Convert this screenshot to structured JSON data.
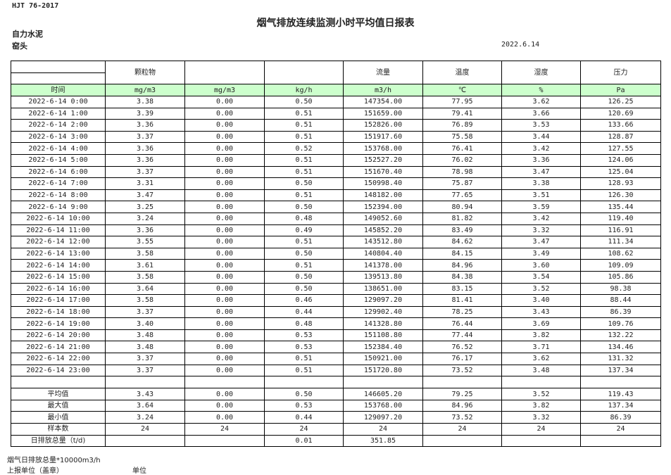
{
  "standard": "HJT  76-2017",
  "title": "烟气排放连续监测小时平均值日报表",
  "company": "自力水泥",
  "unit_name": "窑头",
  "date": "2022.6.14",
  "header": [
    "",
    "颗粒物",
    "",
    "",
    "流量",
    "温度",
    "湿度",
    "压力"
  ],
  "units": [
    "时间",
    "mg/m3",
    "mg/m3",
    "kg/h",
    "m3/h",
    "℃",
    "%",
    "Pa"
  ],
  "rows": [
    [
      "2022-6-14 0:00",
      "3.38",
      "0.00",
      "0.50",
      "147354.00",
      "77.95",
      "3.62",
      "126.25"
    ],
    [
      "2022-6-14 1:00",
      "3.39",
      "0.00",
      "0.51",
      "151659.00",
      "79.41",
      "3.66",
      "120.69"
    ],
    [
      "2022-6-14 2:00",
      "3.36",
      "0.00",
      "0.51",
      "152826.00",
      "76.89",
      "3.53",
      "133.66"
    ],
    [
      "2022-6-14 3:00",
      "3.37",
      "0.00",
      "0.51",
      "151917.60",
      "75.58",
      "3.44",
      "128.87"
    ],
    [
      "2022-6-14 4:00",
      "3.36",
      "0.00",
      "0.52",
      "153768.00",
      "76.41",
      "3.42",
      "127.55"
    ],
    [
      "2022-6-14 5:00",
      "3.36",
      "0.00",
      "0.51",
      "152527.20",
      "76.02",
      "3.36",
      "124.06"
    ],
    [
      "2022-6-14 6:00",
      "3.37",
      "0.00",
      "0.51",
      "151670.40",
      "78.98",
      "3.47",
      "125.04"
    ],
    [
      "2022-6-14 7:00",
      "3.31",
      "0.00",
      "0.50",
      "150998.40",
      "75.87",
      "3.38",
      "128.93"
    ],
    [
      "2022-6-14 8:00",
      "3.47",
      "0.00",
      "0.51",
      "148182.00",
      "77.65",
      "3.51",
      "126.30"
    ],
    [
      "2022-6-14 9:00",
      "3.25",
      "0.00",
      "0.50",
      "152394.00",
      "80.94",
      "3.59",
      "135.44"
    ],
    [
      "2022-6-14 10:00",
      "3.24",
      "0.00",
      "0.48",
      "149052.60",
      "81.82",
      "3.42",
      "119.40"
    ],
    [
      "2022-6-14 11:00",
      "3.36",
      "0.00",
      "0.49",
      "145852.20",
      "83.49",
      "3.32",
      "116.91"
    ],
    [
      "2022-6-14 12:00",
      "3.55",
      "0.00",
      "0.51",
      "143512.80",
      "84.62",
      "3.47",
      "111.34"
    ],
    [
      "2022-6-14 13:00",
      "3.58",
      "0.00",
      "0.50",
      "140804.40",
      "84.15",
      "3.49",
      "108.62"
    ],
    [
      "2022-6-14 14:00",
      "3.61",
      "0.00",
      "0.51",
      "141378.00",
      "84.96",
      "3.60",
      "109.09"
    ],
    [
      "2022-6-14 15:00",
      "3.58",
      "0.00",
      "0.50",
      "139513.80",
      "84.38",
      "3.54",
      "105.86"
    ],
    [
      "2022-6-14 16:00",
      "3.64",
      "0.00",
      "0.50",
      "138651.00",
      "83.15",
      "3.52",
      "98.38"
    ],
    [
      "2022-6-14 17:00",
      "3.58",
      "0.00",
      "0.46",
      "129097.20",
      "81.41",
      "3.40",
      "88.44"
    ],
    [
      "2022-6-14 18:00",
      "3.37",
      "0.00",
      "0.44",
      "129902.40",
      "78.25",
      "3.43",
      "86.39"
    ],
    [
      "2022-6-14 19:00",
      "3.40",
      "0.00",
      "0.48",
      "141328.80",
      "76.44",
      "3.69",
      "109.76"
    ],
    [
      "2022-6-14 20:00",
      "3.48",
      "0.00",
      "0.53",
      "151108.80",
      "77.44",
      "3.82",
      "132.22"
    ],
    [
      "2022-6-14 21:00",
      "3.48",
      "0.00",
      "0.53",
      "152384.40",
      "76.52",
      "3.71",
      "134.46"
    ],
    [
      "2022-6-14 22:00",
      "3.37",
      "0.00",
      "0.51",
      "150921.00",
      "76.17",
      "3.62",
      "131.32"
    ],
    [
      "2022-6-14 23:00",
      "3.37",
      "0.00",
      "0.51",
      "151720.80",
      "73.52",
      "3.48",
      "137.34"
    ]
  ],
  "summary": [
    [
      "平均值",
      "3.43",
      "0.00",
      "0.50",
      "146605.20",
      "79.25",
      "3.52",
      "119.43"
    ],
    [
      "最大值",
      "3.64",
      "0.00",
      "0.53",
      "153768.00",
      "84.96",
      "3.82",
      "137.34"
    ],
    [
      "最小值",
      "3.24",
      "0.00",
      "0.44",
      "129097.20",
      "73.52",
      "3.32",
      "86.39"
    ],
    [
      "样本数",
      "24",
      "24",
      "24",
      "24",
      "24",
      "24",
      "24"
    ],
    [
      "日排放总量（t/d)",
      "",
      "",
      "0.01",
      "351.85",
      "",
      "",
      ""
    ]
  ],
  "footer": {
    "note": "烟气日排放总量*10000m3/h",
    "reporter": "上报单位（盖章）",
    "unit_label": "单位"
  },
  "colors": {
    "unit_row_bg": "#ccffcc"
  }
}
